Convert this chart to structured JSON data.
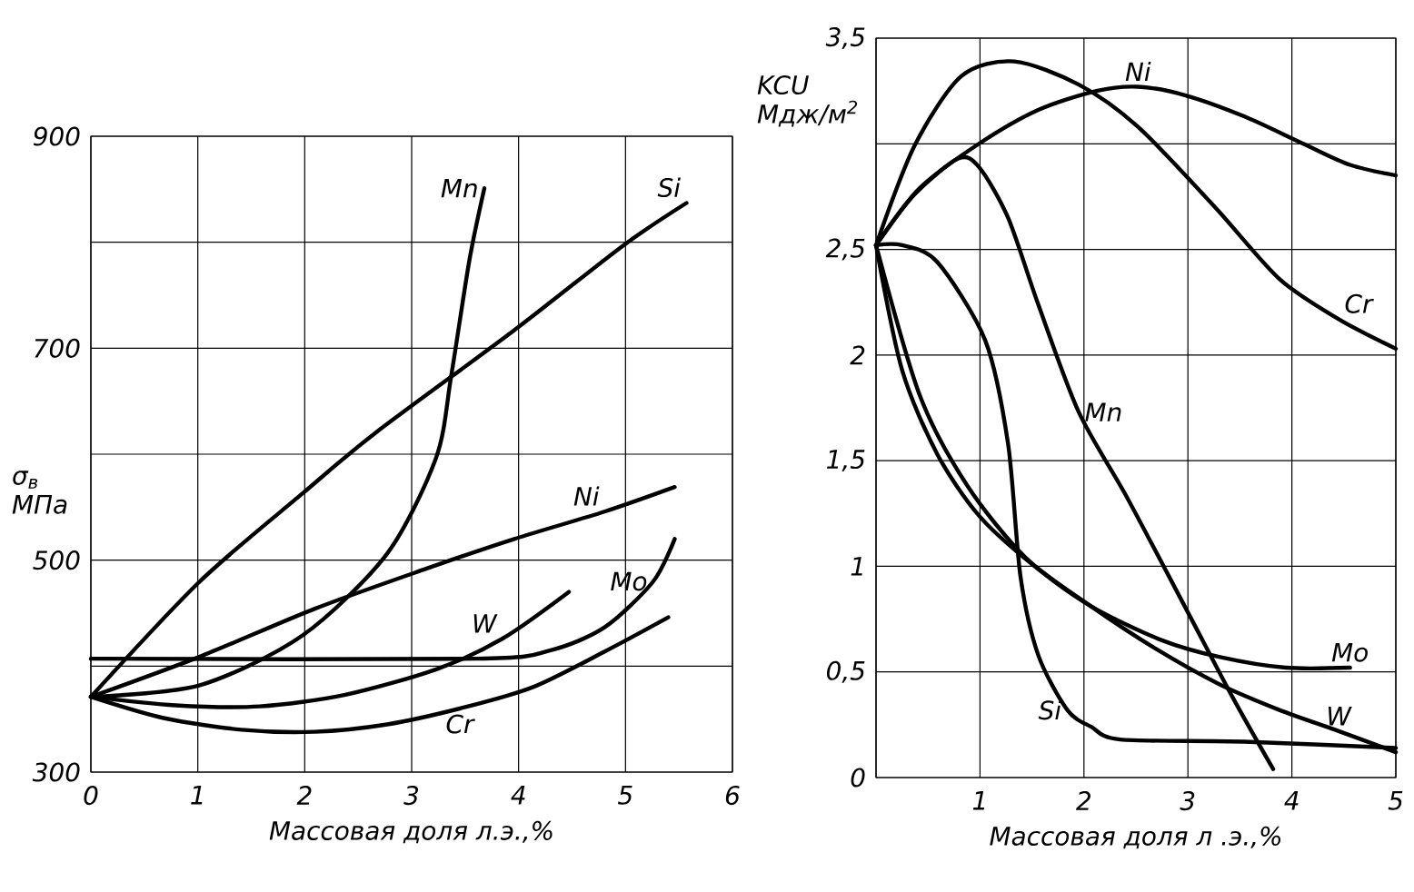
{
  "chart_data": [
    {
      "type": "line",
      "xlabel": "Массовая доля л.э.,%",
      "ylabel": "σ$_{в}$ МПа",
      "xlim": [
        0,
        6
      ],
      "ylim": [
        300,
        900
      ],
      "xticks": [
        0,
        1,
        2,
        3,
        4,
        5,
        6
      ],
      "yticks": [
        300,
        {
          "value": 400,
          "label": null
        },
        500,
        {
          "value": 600,
          "label": null
        },
        700,
        {
          "value": 800,
          "label": null
        },
        900
      ],
      "grid": true,
      "legend": false,
      "marker": "none",
      "line_style": "solid",
      "series": [
        {
          "name": "Si",
          "color": "#000000",
          "x": [
            0,
            1.02,
            1.98,
            2.66,
            3.96,
            4.98,
            5.57
          ],
          "values": [
            371,
            480,
            563,
            620,
            717,
            797,
            837
          ]
        },
        {
          "name": "Mn",
          "color": "#000000",
          "x": [
            0,
            1.02,
            1.98,
            2.77,
            3.23,
            3.37,
            3.54,
            3.68
          ],
          "values": [
            371,
            382,
            429,
            506,
            597,
            674,
            783,
            851
          ]
        },
        {
          "name": "Ni",
          "color": "#000000",
          "x": [
            0,
            1.02,
            2.09,
            3.11,
            3.96,
            4.81,
            5.46
          ],
          "values": [
            371,
            409,
            454,
            491,
            520,
            546,
            569
          ]
        },
        {
          "name": "W",
          "color": "#000000",
          "x": [
            0,
            0.79,
            1.58,
            2.38,
            3.23,
            3.85,
            4.47
          ],
          "values": [
            371,
            363,
            362,
            373,
            397,
            426,
            470
          ]
        },
        {
          "name": "Mo",
          "color": "#000000",
          "x": [
            0,
            3.6,
            4.3,
            4.81,
            5.26,
            5.46
          ],
          "values": [
            407,
            407,
            415,
            437,
            480,
            520
          ]
        },
        {
          "name": "Cr",
          "color": "#000000",
          "x": [
            0,
            0.68,
            1.41,
            2.09,
            2.77,
            3.45,
            4.13,
            4.81,
            5.4
          ],
          "values": [
            371,
            351,
            340,
            338,
            345,
            360,
            380,
            414,
            446
          ]
        }
      ]
    },
    {
      "type": "line",
      "xlabel": "Массовая доля л .э.,%",
      "ylabel": "KCU Мдж/м$^{2}$",
      "xlim": [
        0,
        5
      ],
      "ylim": [
        0,
        3.5
      ],
      "xticks": [
        {
          "value": 0,
          "label": null
        },
        1,
        2,
        3,
        4,
        5
      ],
      "yticks": [
        0,
        {
          "value": 0.5,
          "label": "0,5"
        },
        1,
        {
          "value": 1.5,
          "label": "1,5"
        },
        2,
        {
          "value": 2.5,
          "label": "2,5"
        },
        {
          "value": 3,
          "label": null
        },
        {
          "value": 3.5,
          "label": "3,5"
        }
      ],
      "grid": true,
      "legend": false,
      "marker": "none",
      "line_style": "solid",
      "series": [
        {
          "name": "Ni",
          "color": "#000000",
          "x": [
            0,
            0.42,
            0.99,
            1.56,
            2.12,
            2.52,
            2.97,
            3.54,
            4.11,
            4.56,
            5.0
          ],
          "values": [
            2.52,
            2.79,
            3.0,
            3.16,
            3.25,
            3.27,
            3.23,
            3.13,
            3.0,
            2.9,
            2.85
          ]
        },
        {
          "name": "Cr",
          "color": "#000000",
          "x": [
            0,
            0.37,
            0.82,
            1.33,
            1.95,
            2.52,
            3.26,
            3.88,
            4.45,
            5.0
          ],
          "values": [
            2.52,
            2.99,
            3.32,
            3.39,
            3.28,
            3.08,
            2.7,
            2.36,
            2.17,
            2.03
          ]
        },
        {
          "name": "Mn",
          "color": "#000000",
          "x": [
            0,
            0.37,
            0.79,
            0.99,
            1.27,
            1.56,
            1.95,
            2.41,
            2.97,
            3.43,
            3.82
          ],
          "values": [
            2.52,
            2.76,
            2.93,
            2.89,
            2.65,
            2.24,
            1.73,
            1.33,
            0.81,
            0.38,
            0.04
          ]
        },
        {
          "name": "Si",
          "color": "#000000",
          "x": [
            0,
            0.25,
            0.59,
            1.05,
            1.27,
            1.39,
            1.56,
            1.84,
            2.07,
            2.35,
            3.54,
            5.0
          ],
          "values": [
            2.52,
            2.52,
            2.44,
            2.07,
            1.58,
            0.95,
            0.58,
            0.32,
            0.24,
            0.18,
            0.17,
            0.14
          ]
        },
        {
          "name": "Mo",
          "color": "#000000",
          "x": [
            0,
            0.25,
            0.59,
            0.99,
            1.5,
            2.07,
            2.75,
            3.31,
            3.94,
            4.56
          ],
          "values": [
            2.52,
            1.93,
            1.53,
            1.24,
            1.01,
            0.81,
            0.65,
            0.57,
            0.52,
            0.52
          ]
        },
        {
          "name": "W",
          "color": "#000000",
          "x": [
            0,
            0.42,
            0.88,
            1.44,
            2.07,
            2.69,
            3.31,
            3.88,
            4.45,
            5.0
          ],
          "values": [
            2.52,
            1.81,
            1.38,
            1.04,
            0.81,
            0.61,
            0.44,
            0.32,
            0.22,
            0.12
          ]
        }
      ]
    }
  ]
}
